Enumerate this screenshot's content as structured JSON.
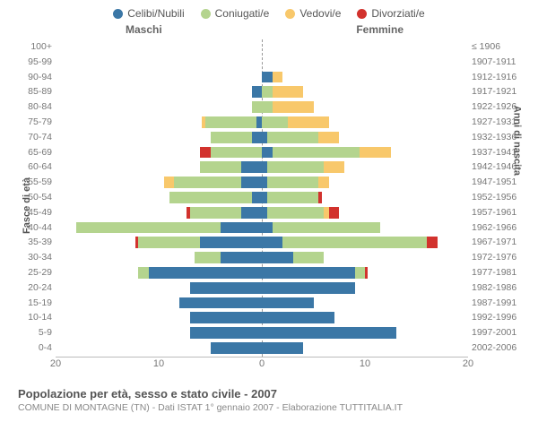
{
  "legend": [
    {
      "label": "Celibi/Nubili",
      "color": "#3b77a6"
    },
    {
      "label": "Coniugati/e",
      "color": "#b4d48e"
    },
    {
      "label": "Vedovi/e",
      "color": "#f8c86b"
    },
    {
      "label": "Divorziati/e",
      "color": "#d2322d"
    }
  ],
  "side_labels": {
    "left": "Maschi",
    "right": "Femmine"
  },
  "y_axis_titles": {
    "left": "Fasce di età",
    "right": "Anni di nascita"
  },
  "x_axis": {
    "max": 20,
    "ticks": [
      20,
      10,
      0,
      10,
      20
    ]
  },
  "caption": {
    "title": "Popolazione per età, sesso e stato civile - 2007",
    "sub": "COMUNE DI MONTAGNE (TN) - Dati ISTAT 1° gennaio 2007 - Elaborazione TUTTITALIA.IT"
  },
  "age_bins": [
    "100+",
    "95-99",
    "90-94",
    "85-89",
    "80-84",
    "75-79",
    "70-74",
    "65-69",
    "60-64",
    "55-59",
    "50-54",
    "45-49",
    "40-44",
    "35-39",
    "30-34",
    "25-29",
    "20-24",
    "15-19",
    "10-14",
    "5-9",
    "0-4"
  ],
  "birth_bins": [
    "≤ 1906",
    "1907-1911",
    "1912-1916",
    "1917-1921",
    "1922-1926",
    "1927-1931",
    "1932-1936",
    "1937-1941",
    "1942-1946",
    "1947-1951",
    "1952-1956",
    "1957-1961",
    "1962-1966",
    "1967-1971",
    "1972-1976",
    "1977-1981",
    "1982-1986",
    "1987-1991",
    "1992-1996",
    "1997-2001",
    "2002-2006"
  ],
  "data": [
    {
      "m": {
        "c": 0,
        "m": 0,
        "v": 0,
        "d": 0
      },
      "f": {
        "c": 0,
        "m": 0,
        "v": 0,
        "d": 0
      }
    },
    {
      "m": {
        "c": 0,
        "m": 0,
        "v": 0,
        "d": 0
      },
      "f": {
        "c": 0,
        "m": 0,
        "v": 0,
        "d": 0
      }
    },
    {
      "m": {
        "c": 0,
        "m": 0,
        "v": 0,
        "d": 0
      },
      "f": {
        "c": 1,
        "m": 0,
        "v": 1,
        "d": 0
      }
    },
    {
      "m": {
        "c": 1,
        "m": 0,
        "v": 0,
        "d": 0
      },
      "f": {
        "c": 0,
        "m": 1,
        "v": 3,
        "d": 0
      }
    },
    {
      "m": {
        "c": 0,
        "m": 1,
        "v": 0,
        "d": 0
      },
      "f": {
        "c": 0,
        "m": 1,
        "v": 4,
        "d": 0
      }
    },
    {
      "m": {
        "c": 0.5,
        "m": 5,
        "v": 0.3,
        "d": 0
      },
      "f": {
        "c": 0,
        "m": 2.5,
        "v": 4,
        "d": 0
      }
    },
    {
      "m": {
        "c": 1,
        "m": 4,
        "v": 0,
        "d": 0
      },
      "f": {
        "c": 0.5,
        "m": 5,
        "v": 2,
        "d": 0
      }
    },
    {
      "m": {
        "c": 0,
        "m": 5,
        "v": 0,
        "d": 1
      },
      "f": {
        "c": 1,
        "m": 8.5,
        "v": 3,
        "d": 0
      }
    },
    {
      "m": {
        "c": 2,
        "m": 4,
        "v": 0,
        "d": 0
      },
      "f": {
        "c": 0.5,
        "m": 5.5,
        "v": 2,
        "d": 0
      }
    },
    {
      "m": {
        "c": 2,
        "m": 6.5,
        "v": 1,
        "d": 0
      },
      "f": {
        "c": 0.5,
        "m": 5,
        "v": 1,
        "d": 0
      }
    },
    {
      "m": {
        "c": 1,
        "m": 8,
        "v": 0,
        "d": 0
      },
      "f": {
        "c": 0.5,
        "m": 5,
        "v": 0,
        "d": 0.3
      }
    },
    {
      "m": {
        "c": 2,
        "m": 5,
        "v": 0,
        "d": 0.3
      },
      "f": {
        "c": 0.5,
        "m": 5.5,
        "v": 0.5,
        "d": 1
      }
    },
    {
      "m": {
        "c": 4,
        "m": 14,
        "v": 0,
        "d": 0
      },
      "f": {
        "c": 1,
        "m": 10.5,
        "v": 0,
        "d": 0
      }
    },
    {
      "m": {
        "c": 6,
        "m": 6,
        "v": 0,
        "d": 0.3
      },
      "f": {
        "c": 2,
        "m": 14,
        "v": 0,
        "d": 1
      }
    },
    {
      "m": {
        "c": 4,
        "m": 2.5,
        "v": 0,
        "d": 0
      },
      "f": {
        "c": 3,
        "m": 3,
        "v": 0,
        "d": 0
      }
    },
    {
      "m": {
        "c": 11,
        "m": 1,
        "v": 0,
        "d": 0
      },
      "f": {
        "c": 9,
        "m": 1,
        "v": 0,
        "d": 0.3
      }
    },
    {
      "m": {
        "c": 7,
        "m": 0,
        "v": 0,
        "d": 0
      },
      "f": {
        "c": 9,
        "m": 0,
        "v": 0,
        "d": 0
      }
    },
    {
      "m": {
        "c": 8,
        "m": 0,
        "v": 0,
        "d": 0
      },
      "f": {
        "c": 5,
        "m": 0,
        "v": 0,
        "d": 0
      }
    },
    {
      "m": {
        "c": 7,
        "m": 0,
        "v": 0,
        "d": 0
      },
      "f": {
        "c": 7,
        "m": 0,
        "v": 0,
        "d": 0
      }
    },
    {
      "m": {
        "c": 7,
        "m": 0,
        "v": 0,
        "d": 0
      },
      "f": {
        "c": 13,
        "m": 0,
        "v": 0,
        "d": 0
      }
    },
    {
      "m": {
        "c": 5,
        "m": 0,
        "v": 0,
        "d": 0
      },
      "f": {
        "c": 4,
        "m": 0,
        "v": 0,
        "d": 0
      }
    }
  ]
}
